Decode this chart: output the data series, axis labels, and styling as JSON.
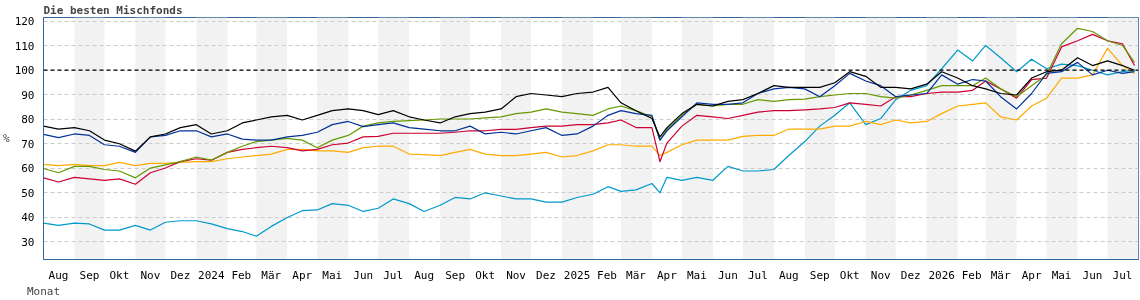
{
  "chart_data": {
    "type": "line",
    "title": "Die besten Mischfonds",
    "xlabel": "Monat",
    "ylabel": "%",
    "x": [
      "2023-08-01",
      "2023-08-16",
      "2023-09-01",
      "2023-09-16",
      "2023-10-01",
      "2023-10-16",
      "2023-11-01",
      "2023-11-16",
      "2023-12-01",
      "2023-12-16",
      "2024-01-01",
      "2024-01-16",
      "2024-02-01",
      "2024-02-16",
      "2024-03-01",
      "2024-03-16",
      "2024-04-01",
      "2024-04-16",
      "2024-05-01",
      "2024-05-16",
      "2024-06-01",
      "2024-06-16",
      "2024-07-01",
      "2024-07-16",
      "2024-08-01",
      "2024-08-16",
      "2024-09-01",
      "2024-09-16",
      "2024-10-01",
      "2024-10-16",
      "2024-11-01",
      "2024-11-16",
      "2024-12-01",
      "2024-12-16",
      "2025-01-01",
      "2025-01-16",
      "2025-02-01",
      "2025-02-16",
      "2025-03-01",
      "2025-03-16",
      "2025-04-01",
      "2025-04-09",
      "2025-04-16",
      "2025-05-01",
      "2025-05-16",
      "2025-06-01",
      "2025-06-16",
      "2025-07-01",
      "2025-07-16",
      "2025-08-01",
      "2025-08-16",
      "2025-09-01",
      "2025-09-16",
      "2025-10-01",
      "2025-10-16",
      "2025-11-01",
      "2025-11-16",
      "2025-12-01",
      "2025-12-16",
      "2026-01-01",
      "2026-01-16",
      "2026-02-01",
      "2026-02-16",
      "2026-03-01",
      "2026-03-16",
      "2026-04-01",
      "2026-04-16",
      "2026-05-01",
      "2026-05-16",
      "2026-06-01",
      "2026-06-16",
      "2026-07-01",
      "2026-07-16",
      "2026-07-28"
    ],
    "series": [
      {
        "color": "#0099cc",
        "values": [
          37.6,
          36.7,
          37.6,
          37.3,
          34.8,
          34.8,
          36.7,
          34.8,
          38,
          38.6,
          38.6,
          37.3,
          35.4,
          34.2,
          32.3,
          36.3,
          39.9,
          42.7,
          43,
          45.6,
          44.9,
          42.4,
          43.7,
          47.5,
          45.6,
          42.4,
          44.9,
          48.1,
          47.5,
          50,
          48.7,
          47.5,
          47.5,
          46.2,
          46.2,
          48.1,
          49.4,
          52.5,
          50.6,
          51.2,
          53.8,
          50,
          56.3,
          55.1,
          56.3,
          55.1,
          60.8,
          58.9,
          58.9,
          59.5,
          65.2,
          70.9,
          77.2,
          81.6,
          86.7,
          77.8,
          80.3,
          88,
          91.8,
          93.7,
          100.6,
          108.2,
          103.8,
          110.1,
          105.1,
          99.4,
          104.5,
          100.6,
          102.5,
          101.9,
          100,
          98.1,
          99.4,
          100
        ]
      },
      {
        "color": "#ffaa00",
        "values": [
          61.6,
          61.1,
          61.6,
          61.1,
          61.1,
          62.4,
          61.1,
          62,
          62,
          62.4,
          62.7,
          62.7,
          63.9,
          64.6,
          65.2,
          65.8,
          67.7,
          67.7,
          67.1,
          67.1,
          66.5,
          68.4,
          69,
          69,
          65.8,
          65.6,
          65.2,
          66.5,
          67.7,
          65.8,
          65.2,
          65.2,
          65.8,
          66.5,
          64.6,
          65.2,
          67.1,
          69.6,
          69.6,
          69,
          69,
          65.2,
          66.5,
          69.6,
          71.5,
          71.5,
          71.5,
          73,
          73.4,
          73.4,
          76,
          76,
          76,
          77.2,
          77.2,
          79.1,
          77.8,
          79.7,
          78.5,
          79.1,
          82.3,
          85.4,
          86.1,
          86.7,
          81,
          79.7,
          85.4,
          88.6,
          96.8,
          96.8,
          98.1,
          108.9,
          101.9,
          98.7
        ]
      },
      {
        "color": "#cc0033",
        "values": [
          56.1,
          54.4,
          56.3,
          55.7,
          55.1,
          55.7,
          53.5,
          58.2,
          60.1,
          62.7,
          63.9,
          63.3,
          66.5,
          67.7,
          68.4,
          69,
          68.4,
          67.1,
          67.7,
          69.6,
          70.3,
          72.8,
          73,
          74.3,
          74.3,
          74.3,
          74.3,
          74.7,
          75.3,
          75.3,
          75.9,
          75.9,
          76.6,
          77.2,
          77.2,
          77.8,
          77.8,
          78.5,
          79.7,
          76.6,
          76.6,
          62.7,
          70.3,
          77.2,
          81.6,
          81,
          80.3,
          81.6,
          82.9,
          83.5,
          83.5,
          83.8,
          84.2,
          84.8,
          86.7,
          86.1,
          85.4,
          89.2,
          89.2,
          90.5,
          91.1,
          91.1,
          91.8,
          95.6,
          92.4,
          88.6,
          96.2,
          96.8,
          109.5,
          112,
          114.6,
          112,
          110.8,
          101.9
        ]
      },
      {
        "color": "#669900",
        "values": [
          59.9,
          58.2,
          60.8,
          60.8,
          59.5,
          58.9,
          56.1,
          60.1,
          61.4,
          62.7,
          64.6,
          63.3,
          66.5,
          69,
          70.9,
          71.5,
          72.2,
          71.5,
          68.4,
          71.5,
          73.4,
          77.2,
          78.5,
          79.1,
          79.4,
          79.7,
          80.1,
          80.1,
          80.1,
          80.6,
          81,
          82.3,
          82.9,
          84.2,
          82.9,
          82.3,
          81.6,
          84.2,
          85.4,
          83.5,
          81,
          71.5,
          75.9,
          81.6,
          86.1,
          85.4,
          86.1,
          86.1,
          88,
          87.3,
          88,
          88.2,
          89.2,
          89.9,
          90.5,
          90.5,
          89.2,
          88.6,
          89.9,
          91.8,
          93.7,
          93.7,
          93.7,
          96.8,
          92.4,
          89.2,
          93.7,
          98.1,
          110.8,
          117.1,
          115.8,
          112,
          110.1,
          103.2
        ]
      },
      {
        "color": "#003399",
        "values": [
          73.8,
          72.5,
          74,
          73.4,
          69.6,
          69,
          66.5,
          72.8,
          73.4,
          75.3,
          75.3,
          72.8,
          74,
          71.9,
          71.5,
          71.5,
          72.8,
          73.4,
          74.7,
          77.8,
          79.1,
          77,
          77.8,
          78.5,
          76.6,
          76,
          75.3,
          75.3,
          77.2,
          74,
          74.7,
          74,
          75.3,
          76.6,
          73.4,
          74,
          77.2,
          81.6,
          83.5,
          82.3,
          81.6,
          71.5,
          75.3,
          81,
          86.7,
          86.1,
          86.1,
          86.7,
          90.5,
          92.4,
          93,
          92.4,
          89.2,
          93.7,
          98.7,
          95.6,
          93.7,
          89.2,
          89.9,
          90.5,
          98.1,
          94.3,
          96.2,
          95.6,
          89.2,
          84.2,
          90.5,
          98.7,
          99.4,
          103.2,
          98.1,
          100,
          98.7,
          99.4
        ]
      },
      {
        "color": "#000000",
        "values": [
          77.2,
          76,
          76.6,
          75.3,
          71.5,
          70,
          67,
          72.8,
          74,
          76.6,
          77.8,
          74,
          75.3,
          78.5,
          79.7,
          81,
          81.6,
          79.7,
          81.6,
          83.5,
          84.2,
          83.5,
          81.9,
          83.5,
          81,
          79.7,
          78.5,
          81,
          82.3,
          82.9,
          84.2,
          89.2,
          90.5,
          89.9,
          89.2,
          90.5,
          91.1,
          93,
          86.7,
          83.5,
          80.3,
          72.8,
          76.6,
          82.3,
          86.1,
          85.4,
          87.3,
          88,
          90.5,
          93.7,
          93,
          93,
          93,
          94.9,
          99.4,
          97.5,
          93,
          93,
          92.4,
          94.3,
          99.4,
          96.8,
          93.7,
          92.4,
          90.5,
          89.9,
          96.8,
          99.4,
          100,
          105.1,
          101.9,
          103.8,
          101.9,
          100
        ]
      }
    ],
    "xlim": [
      "2023-08-01",
      "2026-08-01"
    ],
    "xticks": [
      {
        "value": "2023-08-16",
        "label": "Aug"
      },
      {
        "value": "2023-09-16",
        "label": "Sep"
      },
      {
        "value": "2023-10-16",
        "label": "Okt"
      },
      {
        "value": "2023-11-16",
        "label": "Nov"
      },
      {
        "value": "2023-12-16",
        "label": "Dez"
      },
      {
        "value": "2024-01-16",
        "label": "2024"
      },
      {
        "value": "2024-02-15",
        "label": "Feb"
      },
      {
        "value": "2024-03-16",
        "label": "Mär"
      },
      {
        "value": "2024-04-16",
        "label": "Apr"
      },
      {
        "value": "2024-05-16",
        "label": "Mai"
      },
      {
        "value": "2024-06-16",
        "label": "Jun"
      },
      {
        "value": "2024-07-16",
        "label": "Jul"
      },
      {
        "value": "2024-08-16",
        "label": "Aug"
      },
      {
        "value": "2024-09-16",
        "label": "Sep"
      },
      {
        "value": "2024-10-16",
        "label": "Okt"
      },
      {
        "value": "2024-11-16",
        "label": "Nov"
      },
      {
        "value": "2024-12-16",
        "label": "Dez"
      },
      {
        "value": "2025-01-16",
        "label": "2025"
      },
      {
        "value": "2025-02-15",
        "label": "Feb"
      },
      {
        "value": "2025-03-16",
        "label": "Mär"
      },
      {
        "value": "2025-04-16",
        "label": "Apr"
      },
      {
        "value": "2025-05-16",
        "label": "Mai"
      },
      {
        "value": "2025-06-16",
        "label": "Jun"
      },
      {
        "value": "2025-07-16",
        "label": "Jul"
      },
      {
        "value": "2025-08-16",
        "label": "Aug"
      },
      {
        "value": "2025-09-16",
        "label": "Sep"
      },
      {
        "value": "2025-10-16",
        "label": "Okt"
      },
      {
        "value": "2025-11-16",
        "label": "Nov"
      },
      {
        "value": "2025-12-16",
        "label": "Dez"
      },
      {
        "value": "2026-01-16",
        "label": "2026"
      },
      {
        "value": "2026-02-15",
        "label": "Feb"
      },
      {
        "value": "2026-03-16",
        "label": "Mär"
      },
      {
        "value": "2026-04-16",
        "label": "Apr"
      },
      {
        "value": "2026-05-16",
        "label": "Mai"
      },
      {
        "value": "2026-06-16",
        "label": "Jun"
      },
      {
        "value": "2026-07-16",
        "label": "Jul"
      }
    ],
    "ylim": [
      22.8,
      121.5
    ],
    "yticks": [
      30,
      40,
      50,
      60,
      70,
      80,
      90,
      100,
      110,
      120
    ],
    "grid": "y",
    "line_style": "solid",
    "marker": "none",
    "ref_lines": [
      {
        "axis": "y",
        "value": 100,
        "color": "#000000",
        "line_style": "dashed"
      }
    ],
    "bands": [
      {
        "axis": "x",
        "from": "2023-09-01",
        "to": "2023-10-01",
        "color": "#f2f2f2"
      },
      {
        "axis": "x",
        "from": "2023-11-01",
        "to": "2023-12-01",
        "color": "#f2f2f2"
      },
      {
        "axis": "x",
        "from": "2024-01-01",
        "to": "2024-02-01",
        "color": "#f2f2f2"
      },
      {
        "axis": "x",
        "from": "2024-03-01",
        "to": "2024-04-01",
        "color": "#f2f2f2"
      },
      {
        "axis": "x",
        "from": "2024-05-01",
        "to": "2024-06-01",
        "color": "#f2f2f2"
      },
      {
        "axis": "x",
        "from": "2024-07-01",
        "to": "2024-08-01",
        "color": "#f2f2f2"
      },
      {
        "axis": "x",
        "from": "2024-09-01",
        "to": "2024-10-01",
        "color": "#f2f2f2"
      },
      {
        "axis": "x",
        "from": "2024-11-01",
        "to": "2024-12-01",
        "color": "#f2f2f2"
      },
      {
        "axis": "x",
        "from": "2025-01-01",
        "to": "2025-02-01",
        "color": "#f2f2f2"
      },
      {
        "axis": "x",
        "from": "2025-03-01",
        "to": "2025-04-01",
        "color": "#f2f2f2"
      },
      {
        "axis": "x",
        "from": "2025-05-01",
        "to": "2025-06-01",
        "color": "#f2f2f2"
      },
      {
        "axis": "x",
        "from": "2025-07-01",
        "to": "2025-08-01",
        "color": "#f2f2f2"
      },
      {
        "axis": "x",
        "from": "2025-09-01",
        "to": "2025-10-01",
        "color": "#f2f2f2"
      },
      {
        "axis": "x",
        "from": "2025-11-01",
        "to": "2025-12-01",
        "color": "#f2f2f2"
      },
      {
        "axis": "x",
        "from": "2026-01-01",
        "to": "2026-02-01",
        "color": "#f2f2f2"
      },
      {
        "axis": "x",
        "from": "2026-03-01",
        "to": "2026-04-01",
        "color": "#f2f2f2"
      },
      {
        "axis": "x",
        "from": "2026-05-01",
        "to": "2026-06-01",
        "color": "#f2f2f2"
      },
      {
        "axis": "x",
        "from": "2026-07-01",
        "to": "2026-08-01",
        "color": "#f2f2f2"
      }
    ]
  }
}
